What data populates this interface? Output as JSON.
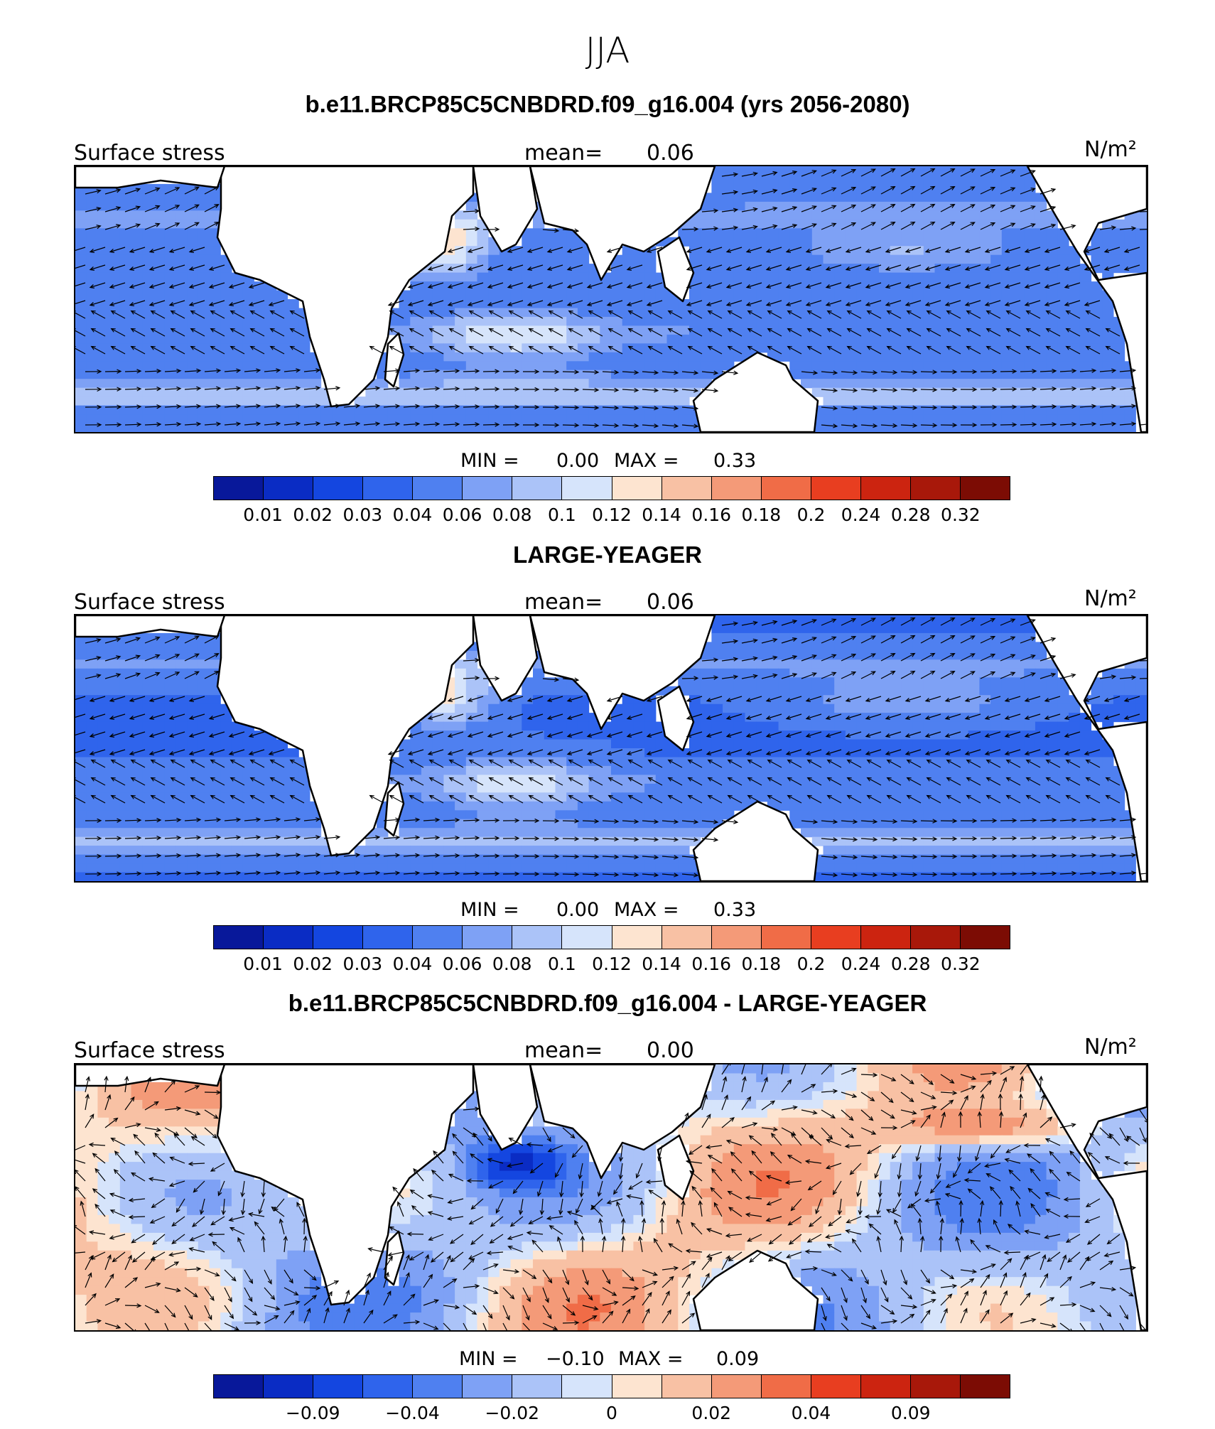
{
  "season": "JJA",
  "colors": [
    "#08189a",
    "#0a2cc4",
    "#1446e0",
    "#2f64ec",
    "#4f80f0",
    "#7ea1f5",
    "#abc3f8",
    "#d6e4fb",
    "#fde4d0",
    "#f8c1a4",
    "#f49a78",
    "#f06c47",
    "#e83e20",
    "#cc2410",
    "#a8180a",
    "#7c0c04"
  ],
  "panels": [
    {
      "title": "b.e11.BRCP85C5CNBDRD.f09_g16.004 (yrs 2056-2080)",
      "variable": "Surface stress",
      "mean_label": "mean=",
      "mean_value": "0.06",
      "units": "N/m²",
      "min_label": "MIN =",
      "min_value": "0.00",
      "max_label": "MAX =",
      "max_value": "0.33",
      "field": "abs",
      "ticks": [
        "0.01",
        "0.02",
        "0.03",
        "0.04",
        "0.06",
        "0.08",
        "0.1",
        "0.12",
        "0.14",
        "0.16",
        "0.18",
        "0.2",
        "0.24",
        "0.28",
        "0.32"
      ]
    },
    {
      "title": "LARGE-YEAGER",
      "variable": "Surface stress",
      "mean_label": "mean=",
      "mean_value": "0.06",
      "units": "N/m²",
      "min_label": "MIN =",
      "min_value": "0.00",
      "max_label": "MAX =",
      "max_value": "0.33",
      "field": "abs",
      "ticks": [
        "0.01",
        "0.02",
        "0.03",
        "0.04",
        "0.06",
        "0.08",
        "0.1",
        "0.12",
        "0.14",
        "0.16",
        "0.18",
        "0.2",
        "0.24",
        "0.28",
        "0.32"
      ]
    },
    {
      "title": "b.e11.BRCP85C5CNBDRD.f09_g16.004 - LARGE-YEAGER",
      "variable": "Surface stress",
      "mean_label": "mean=",
      "mean_value": "0.00",
      "units": "N/m²",
      "min_label": "MIN =",
      "min_value": "−0.10",
      "max_label": "MAX =",
      "max_value": "0.09",
      "field": "diff",
      "ticks": [
        "",
        "−0.09",
        "",
        "−0.04",
        "",
        "−0.02",
        "",
        "0",
        "",
        "0.02",
        "",
        "0.04",
        "",
        "0.09",
        ""
      ]
    }
  ]
}
